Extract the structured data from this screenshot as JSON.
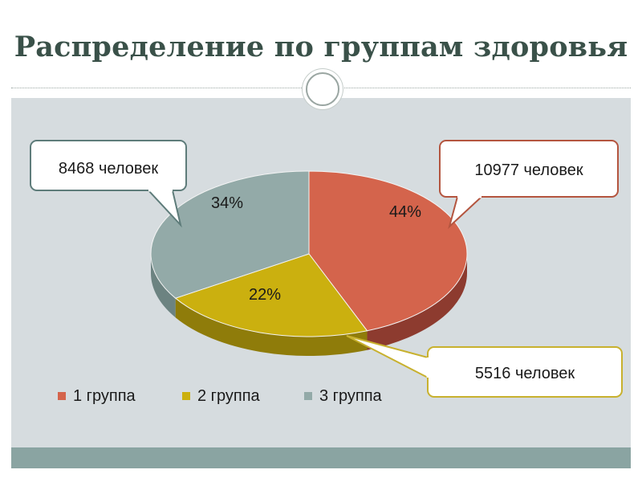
{
  "title": "Распределение по группам здоровья",
  "colors": {
    "panel": "#d6dcdf",
    "band": "#8aa4a2",
    "title": "#3a5149"
  },
  "chart_data": {
    "type": "pie",
    "title": "Распределение по группам здоровья",
    "three_d": true,
    "legend_position": "bottom-left",
    "slices": [
      {
        "name": "1 группа",
        "percent": 44,
        "percent_label": "44%",
        "count": 10977,
        "callout": "10977 человек",
        "color": "#d4644c",
        "side_color": "#8d3b2f",
        "border": "#b4553f"
      },
      {
        "name": "2 группа",
        "percent": 22,
        "percent_label": "22%",
        "count": 5516,
        "callout": "5516 человек",
        "color": "#cbb00f",
        "side_color": "#8f7c0a",
        "border": "#c8b12e"
      },
      {
        "name": "3 группа",
        "percent": 34,
        "percent_label": "34%",
        "count": 8468,
        "callout": "8468 человек",
        "color": "#93aaa8",
        "side_color": "#6c8381",
        "border": "#5e7c7a"
      }
    ]
  }
}
